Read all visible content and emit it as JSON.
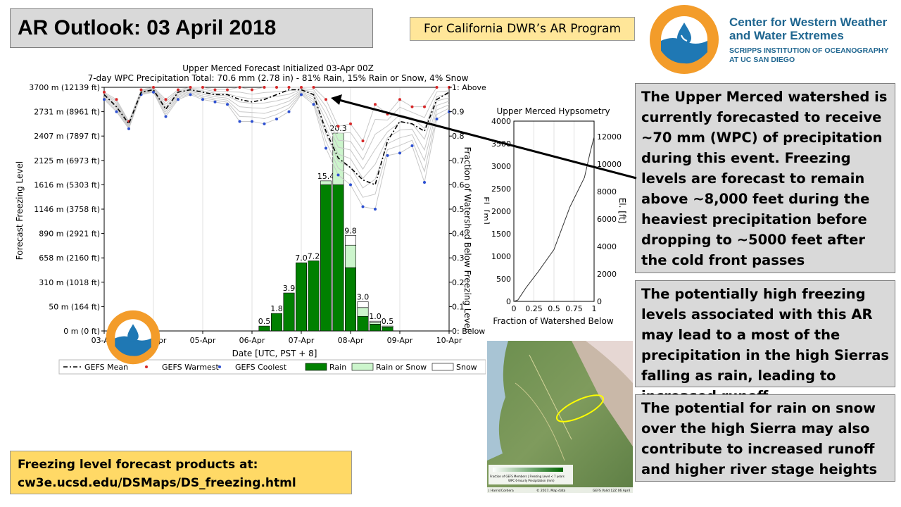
{
  "header": {
    "title": "AR Outlook: 03 April 2018",
    "program_label": "For California DWR’s AR Program"
  },
  "org": {
    "name_line1": "Center for Western Weather",
    "name_line2": "and Water Extremes",
    "sub_line1": "SCRIPPS INSTITUTION OF OCEANOGRAPHY",
    "sub_line2": "AT UC SAN DIEGO"
  },
  "notes": [
    "The Upper Merced watershed is currently forecasted to receive ~70 mm (WPC) of precipitation during this event. Freezing levels are forecast to remain above ~8,000 feet during the heaviest precipitation before dropping to ~5000 feet after the cold front passes",
    "The potentially high freezing levels associated with this AR may lead to a most of the precipitation in the high Sierras falling as rain, leading to increased runoff",
    "The potential for rain on snow over the high Sierra may also contribute to increased runoff and higher river stage heights"
  ],
  "footer": {
    "line1": "Freezing level forecast products at:",
    "line2": "cw3e.ucsd.edu/DSMaps/DS_freezing.html"
  },
  "map": {
    "legend_caption": "Fraction of GEFS Members | Freezing Level < 7 years",
    "legend_caption2": "WPC 6-hourly Precipitation (mm)",
    "credit_left": "| Harris/Cordera",
    "credit_mid": "© 2017, Map data",
    "credit_right": "GEFS Valid 12Z 06 April"
  },
  "colors": {
    "mean": "#000000",
    "warmest": "#d62728",
    "coolest": "#2c4fd1",
    "rain": "#008000",
    "rain_or_snow": "#ccf5cc",
    "snow": "#ffffff",
    "ellipse": "#ffff00",
    "arrow": "#000000"
  },
  "chart_data": [
    {
      "type": "line",
      "title": "Upper Merced Forecast Initialized 03-Apr 00Z",
      "subtitle": "7-day WPC Precipitation Total: 70.6 mm (2.78 in) - 81% Rain, 15% Rain or Snow, 4% Snow",
      "xlabel": "Date [UTC, PST + 8]",
      "ylabel": "Forecast Freezing Level",
      "ylabel_right": "Fraction of Watershed Below Freezing Level",
      "x_ticks": [
        "03-Apr",
        "04-Apr",
        "05-Apr",
        "06-Apr",
        "07-Apr",
        "08-Apr",
        "09-Apr",
        "10-Apr"
      ],
      "y_ticks_left": [
        "0 m (0 ft)",
        "50 m (164 ft)",
        "310 m (1018 ft)",
        "658 m (2160 ft)",
        "890 m (2921 ft)",
        "1146 m (3758 ft)",
        "1616 m (5303 ft)",
        "2125 m (6973 ft)",
        "2407 m (7897 ft)",
        "2731 m (8961 ft)",
        "3700 m (12139 ft)"
      ],
      "y_ticks_right": [
        "0: Below Watershed",
        "0.1",
        "0.2",
        "0.3",
        "0.4",
        "0.5",
        "0.6",
        "0.7",
        "0.8",
        "0.9",
        "1: Above Watershed"
      ],
      "ylim": [
        0,
        1
      ],
      "xlim": [
        0,
        7
      ],
      "series": [
        {
          "name": "GEFS Mean",
          "x": [
            0,
            0.25,
            0.5,
            0.75,
            1.0,
            1.25,
            1.5,
            1.75,
            2.0,
            2.25,
            2.5,
            2.75,
            3.0,
            3.25,
            3.5,
            3.75,
            4.0,
            4.25,
            4.5,
            4.75,
            5.0,
            5.25,
            5.5,
            5.75,
            6.0,
            6.25,
            6.5,
            6.75,
            7.0
          ],
          "values": [
            0.97,
            0.92,
            0.85,
            0.98,
            0.99,
            0.91,
            0.98,
            0.99,
            0.98,
            0.97,
            0.97,
            0.95,
            0.94,
            0.95,
            0.97,
            0.99,
            0.99,
            0.97,
            0.82,
            0.71,
            0.67,
            0.62,
            0.6,
            0.78,
            0.86,
            0.85,
            0.82,
            0.95,
            0.98
          ]
        },
        {
          "name": "GEFS Warmest",
          "x": [
            0,
            0.25,
            0.5,
            0.75,
            1.0,
            1.25,
            1.5,
            1.75,
            2.0,
            2.25,
            2.5,
            2.75,
            3.0,
            3.25,
            3.5,
            3.75,
            4.0,
            4.25,
            4.5,
            4.75,
            5.0,
            5.25,
            5.5,
            5.75,
            6.0,
            6.25,
            6.5,
            6.75,
            7.0
          ],
          "values": [
            0.98,
            0.95,
            0.86,
            0.99,
            1.0,
            0.95,
            0.99,
            1.0,
            1.0,
            0.99,
            0.99,
            1.0,
            0.99,
            1.0,
            1.0,
            1.0,
            1.0,
            1.0,
            0.95,
            0.84,
            0.85,
            0.78,
            0.93,
            0.89,
            0.95,
            0.92,
            0.92,
            1.0,
            1.0
          ]
        },
        {
          "name": "GEFS Coolest",
          "x": [
            0,
            0.25,
            0.5,
            0.75,
            1.0,
            1.25,
            1.5,
            1.75,
            2.0,
            2.25,
            2.5,
            2.75,
            3.0,
            3.25,
            3.5,
            3.75,
            4.0,
            4.25,
            4.5,
            4.75,
            5.0,
            5.25,
            5.5,
            5.75,
            6.0,
            6.25,
            6.5,
            6.75,
            7.0
          ],
          "values": [
            0.95,
            0.9,
            0.83,
            0.97,
            0.98,
            0.88,
            0.95,
            0.97,
            0.95,
            0.94,
            0.93,
            0.86,
            0.86,
            0.85,
            0.87,
            0.9,
            0.97,
            0.93,
            0.75,
            0.64,
            0.6,
            0.51,
            0.5,
            0.72,
            0.73,
            0.76,
            0.61,
            0.87,
            0.9
          ]
        }
      ],
      "bars": {
        "x": [
          3.25,
          3.5,
          3.75,
          4.0,
          4.25,
          4.5,
          4.75,
          5.0,
          5.25,
          5.5,
          5.75
        ],
        "labels": [
          "0.5",
          "1.8",
          "3.9",
          "7.0",
          "7.2",
          "15.4",
          "20.3",
          "9.8",
          "3.0",
          "1.0",
          "0.5"
        ],
        "rain": [
          0.5,
          1.8,
          3.9,
          7.0,
          7.2,
          15.0,
          15.0,
          6.5,
          1.5,
          0.7,
          0.4
        ],
        "rain_or_snow": [
          0,
          0,
          0,
          0,
          0,
          0.4,
          5.3,
          2.3,
          0.9,
          0.2,
          0.1
        ],
        "snow": [
          0,
          0,
          0,
          0,
          0,
          0,
          0,
          1.0,
          0.6,
          0.1,
          0
        ],
        "max_mm": 25
      },
      "legend": [
        {
          "name": "GEFS Mean",
          "kind": "line"
        },
        {
          "name": "GEFS Warmest",
          "kind": "red-dot"
        },
        {
          "name": "GEFS Coolest",
          "kind": "blue-dot"
        },
        {
          "name": "Rain",
          "kind": "rain"
        },
        {
          "name": "Rain or Snow",
          "kind": "mix"
        },
        {
          "name": "Snow",
          "kind": "snow"
        }
      ],
      "legend_placement": "bottom"
    },
    {
      "type": "line",
      "title": "Upper Merced Hypsometry",
      "xlabel": "Fraction of Watershed Below",
      "ylabel": "El. [m]",
      "ylabel_right": "El. [ft]",
      "x_ticks": [
        "0",
        "0.25",
        "0.5",
        "0.75",
        "1"
      ],
      "y_ticks_left": [
        "0",
        "500",
        "1000",
        "1500",
        "2000",
        "2500",
        "3000",
        "3500",
        "4000"
      ],
      "y_ticks_right": [
        "0",
        "2000",
        "4000",
        "6000",
        "8000",
        "10000",
        "12000"
      ],
      "xlim": [
        0,
        1
      ],
      "ylim": [
        0,
        4000
      ],
      "x": [
        0,
        0.05,
        0.15,
        0.3,
        0.5,
        0.7,
        0.88,
        0.95,
        1.0
      ],
      "values": [
        0,
        30,
        300,
        650,
        1150,
        2100,
        2750,
        3300,
        3650
      ],
      "grid": true
    }
  ]
}
